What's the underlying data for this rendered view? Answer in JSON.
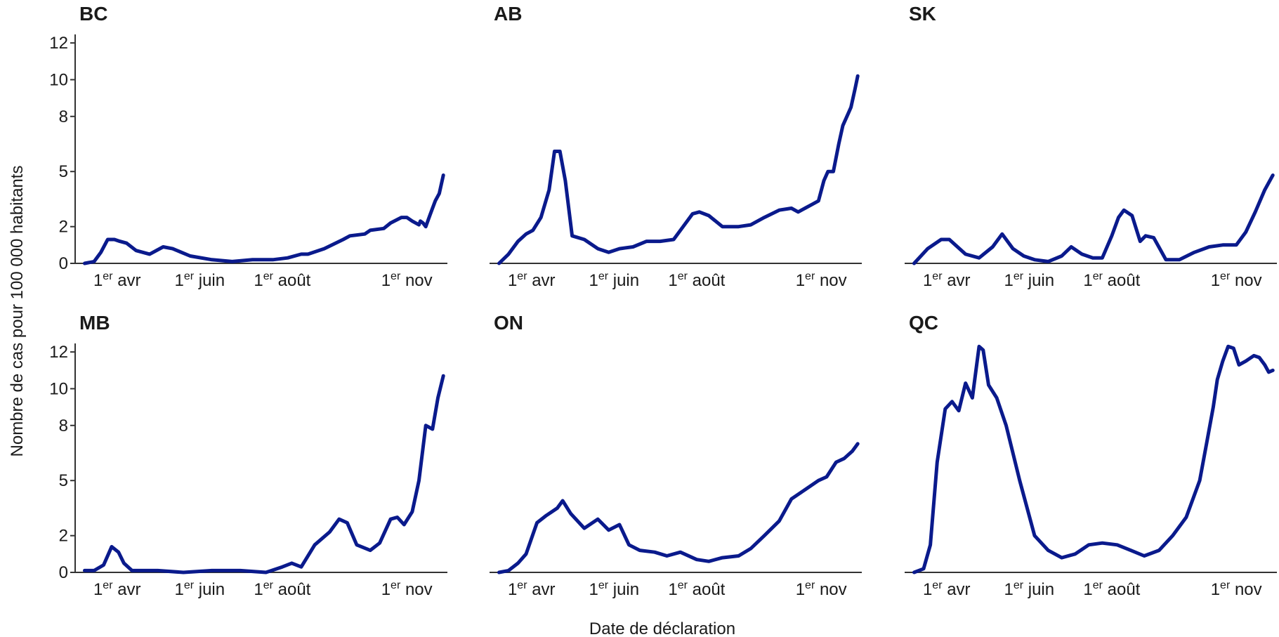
{
  "ylabel": "Nombre de cas pour 100 000 habitants",
  "xlabel": "Date de déclaration",
  "colors": {
    "line": "#0a1a8c",
    "axis": "#333333",
    "text": "#1a1a1a"
  },
  "chart_data": [
    {
      "type": "line",
      "title": "BC",
      "ylim": [
        0,
        13
      ],
      "yticks": [
        0,
        2,
        5,
        8,
        10,
        12
      ],
      "xticks": [
        "1er avr",
        "1er juin",
        "1er août",
        "1er nov"
      ],
      "series": [
        {
          "x": [
            "2020-03-08",
            "2020-03-15",
            "2020-03-20",
            "2020-03-25",
            "2020-03-30",
            "2020-04-03",
            "2020-04-08",
            "2020-04-15",
            "2020-04-25",
            "2020-05-05",
            "2020-05-12",
            "2020-05-25",
            "2020-06-10",
            "2020-06-25",
            "2020-07-10",
            "2020-07-25",
            "2020-08-05",
            "2020-08-15",
            "2020-08-20",
            "2020-09-01",
            "2020-09-15",
            "2020-09-20",
            "2020-10-01",
            "2020-10-05",
            "2020-10-15",
            "2020-10-20",
            "2020-10-28",
            "2020-11-01",
            "2020-11-05",
            "2020-11-10",
            "2020-11-11",
            "2020-11-13",
            "2020-11-15",
            "2020-11-18",
            "2020-11-20",
            "2020-11-22",
            "2020-11-25",
            "2020-11-28"
          ],
          "values": [
            0.0,
            0.1,
            0.6,
            1.3,
            1.3,
            1.2,
            1.1,
            0.7,
            0.5,
            0.9,
            0.8,
            0.4,
            0.2,
            0.1,
            0.2,
            0.2,
            0.3,
            0.5,
            0.5,
            0.8,
            1.3,
            1.5,
            1.6,
            1.8,
            1.9,
            2.2,
            2.5,
            2.5,
            2.3,
            2.1,
            2.3,
            2.2,
            2.0,
            2.6,
            3.0,
            3.4,
            3.8,
            4.8
          ]
        }
      ]
    },
    {
      "type": "line",
      "title": "AB",
      "ylim": [
        0,
        13
      ],
      "yticks": [
        0,
        2,
        5,
        8,
        10,
        12
      ],
      "xticks": [
        "1er avr",
        "1er juin",
        "1er août",
        "1er nov"
      ],
      "series": [
        {
          "x": [
            "2020-03-08",
            "2020-03-15",
            "2020-03-22",
            "2020-03-28",
            "2020-04-02",
            "2020-04-08",
            "2020-04-14",
            "2020-04-18",
            "2020-04-22",
            "2020-04-26",
            "2020-05-01",
            "2020-05-10",
            "2020-05-20",
            "2020-05-28",
            "2020-06-05",
            "2020-06-15",
            "2020-06-25",
            "2020-07-05",
            "2020-07-15",
            "2020-07-22",
            "2020-07-29",
            "2020-08-03",
            "2020-08-10",
            "2020-08-20",
            "2020-09-01",
            "2020-09-10",
            "2020-09-20",
            "2020-10-01",
            "2020-10-10",
            "2020-10-15",
            "2020-10-20",
            "2020-10-25",
            "2020-10-30",
            "2020-11-03",
            "2020-11-06",
            "2020-11-10",
            "2020-11-14",
            "2020-11-17",
            "2020-11-20",
            "2020-11-23",
            "2020-11-26",
            "2020-11-28"
          ],
          "values": [
            0.0,
            0.5,
            1.2,
            1.6,
            1.8,
            2.5,
            4.0,
            6.1,
            6.1,
            4.5,
            1.5,
            1.3,
            0.8,
            0.6,
            0.8,
            0.9,
            1.2,
            1.2,
            1.3,
            2.0,
            2.7,
            2.8,
            2.6,
            2.0,
            2.0,
            2.1,
            2.5,
            2.9,
            3.0,
            2.8,
            3.0,
            3.2,
            3.4,
            4.5,
            5.0,
            5.0,
            6.5,
            7.5,
            8.0,
            8.5,
            9.5,
            10.2
          ]
        }
      ]
    },
    {
      "type": "line",
      "title": "SK",
      "ylim": [
        0,
        13
      ],
      "yticks": [
        0,
        2,
        5,
        8,
        10,
        12
      ],
      "xticks": [
        "1er avr",
        "1er juin",
        "1er août",
        "1er nov"
      ],
      "series": [
        {
          "x": [
            "2020-03-08",
            "2020-03-18",
            "2020-03-28",
            "2020-04-03",
            "2020-04-15",
            "2020-04-25",
            "2020-05-05",
            "2020-05-12",
            "2020-05-20",
            "2020-05-28",
            "2020-06-05",
            "2020-06-15",
            "2020-06-25",
            "2020-07-02",
            "2020-07-10",
            "2020-07-18",
            "2020-07-25",
            "2020-08-01",
            "2020-08-06",
            "2020-08-10",
            "2020-08-16",
            "2020-08-22",
            "2020-08-26",
            "2020-09-01",
            "2020-09-10",
            "2020-09-20",
            "2020-10-01",
            "2020-10-12",
            "2020-10-22",
            "2020-11-01",
            "2020-11-08",
            "2020-11-15",
            "2020-11-22",
            "2020-11-28"
          ],
          "values": [
            0.0,
            0.8,
            1.3,
            1.3,
            0.5,
            0.3,
            0.9,
            1.6,
            0.8,
            0.4,
            0.2,
            0.1,
            0.4,
            0.9,
            0.5,
            0.3,
            0.3,
            1.5,
            2.5,
            2.9,
            2.6,
            1.2,
            1.5,
            1.4,
            0.2,
            0.2,
            0.6,
            0.9,
            1.0,
            1.0,
            1.7,
            2.8,
            4.0,
            4.8
          ]
        }
      ]
    },
    {
      "type": "line",
      "title": "MB",
      "ylim": [
        0,
        13
      ],
      "yticks": [
        0,
        2,
        5,
        8,
        10,
        12
      ],
      "xticks": [
        "1er avr",
        "1er juin",
        "1er août",
        "1er nov"
      ],
      "series": [
        {
          "x": [
            "2020-03-08",
            "2020-03-15",
            "2020-03-22",
            "2020-03-28",
            "2020-04-02",
            "2020-04-06",
            "2020-04-12",
            "2020-04-20",
            "2020-05-01",
            "2020-05-20",
            "2020-06-10",
            "2020-07-01",
            "2020-07-20",
            "2020-08-01",
            "2020-08-08",
            "2020-08-15",
            "2020-08-25",
            "2020-09-05",
            "2020-09-12",
            "2020-09-18",
            "2020-09-25",
            "2020-10-05",
            "2020-10-12",
            "2020-10-20",
            "2020-10-25",
            "2020-10-30",
            "2020-11-05",
            "2020-11-10",
            "2020-11-15",
            "2020-11-20",
            "2020-11-24",
            "2020-11-28"
          ],
          "values": [
            0.1,
            0.1,
            0.4,
            1.4,
            1.1,
            0.5,
            0.1,
            0.1,
            0.1,
            0.0,
            0.1,
            0.1,
            0.0,
            0.3,
            0.5,
            0.3,
            1.5,
            2.2,
            2.9,
            2.7,
            1.5,
            1.2,
            1.6,
            2.9,
            3.0,
            2.6,
            3.3,
            5.0,
            8.0,
            7.8,
            9.5,
            10.7
          ]
        }
      ]
    },
    {
      "type": "line",
      "title": "ON",
      "ylim": [
        0,
        13
      ],
      "yticks": [
        0,
        2,
        5,
        8,
        10,
        12
      ],
      "xticks": [
        "1er avr",
        "1er juin",
        "1er août",
        "1er nov"
      ],
      "series": [
        {
          "x": [
            "2020-03-08",
            "2020-03-15",
            "2020-03-22",
            "2020-03-28",
            "2020-04-05",
            "2020-04-12",
            "2020-04-20",
            "2020-04-24",
            "2020-04-30",
            "2020-05-10",
            "2020-05-20",
            "2020-05-28",
            "2020-06-05",
            "2020-06-12",
            "2020-06-20",
            "2020-07-01",
            "2020-07-10",
            "2020-07-20",
            "2020-08-01",
            "2020-08-10",
            "2020-08-20",
            "2020-09-01",
            "2020-09-10",
            "2020-09-20",
            "2020-10-01",
            "2020-10-10",
            "2020-10-20",
            "2020-10-30",
            "2020-11-05",
            "2020-11-12",
            "2020-11-18",
            "2020-11-24",
            "2020-11-28"
          ],
          "values": [
            0.0,
            0.1,
            0.5,
            1.0,
            2.7,
            3.1,
            3.5,
            3.9,
            3.2,
            2.4,
            2.9,
            2.3,
            2.6,
            1.5,
            1.2,
            1.1,
            0.9,
            1.1,
            0.7,
            0.6,
            0.8,
            0.9,
            1.3,
            2.0,
            2.8,
            4.0,
            4.5,
            5.0,
            5.2,
            6.0,
            6.2,
            6.6,
            7.0
          ]
        }
      ]
    },
    {
      "type": "line",
      "title": "QC",
      "ylim": [
        0,
        13
      ],
      "yticks": [
        0,
        2,
        5,
        8,
        10,
        12
      ],
      "xticks": [
        "1er avr",
        "1er juin",
        "1er août",
        "1er nov"
      ],
      "series": [
        {
          "x": [
            "2020-03-08",
            "2020-03-15",
            "2020-03-20",
            "2020-03-25",
            "2020-03-31",
            "2020-04-05",
            "2020-04-10",
            "2020-04-15",
            "2020-04-20",
            "2020-04-25",
            "2020-04-28",
            "2020-05-02",
            "2020-05-08",
            "2020-05-15",
            "2020-05-25",
            "2020-06-05",
            "2020-06-15",
            "2020-06-25",
            "2020-07-05",
            "2020-07-15",
            "2020-07-25",
            "2020-08-05",
            "2020-08-15",
            "2020-08-25",
            "2020-09-05",
            "2020-09-15",
            "2020-09-25",
            "2020-10-05",
            "2020-10-10",
            "2020-10-15",
            "2020-10-18",
            "2020-10-22",
            "2020-10-26",
            "2020-10-30",
            "2020-11-03",
            "2020-11-08",
            "2020-11-14",
            "2020-11-18",
            "2020-11-22",
            "2020-11-25",
            "2020-11-28"
          ],
          "values": [
            0.0,
            0.2,
            1.5,
            6.0,
            8.9,
            9.3,
            8.8,
            10.3,
            9.5,
            12.3,
            12.1,
            10.2,
            9.5,
            8.0,
            5.0,
            2.0,
            1.2,
            0.8,
            1.0,
            1.5,
            1.6,
            1.5,
            1.2,
            0.9,
            1.2,
            2.0,
            3.0,
            5.0,
            7.0,
            9.0,
            10.5,
            11.5,
            12.3,
            12.2,
            11.3,
            11.5,
            11.8,
            11.7,
            11.3,
            10.9,
            11.0
          ]
        }
      ]
    }
  ]
}
